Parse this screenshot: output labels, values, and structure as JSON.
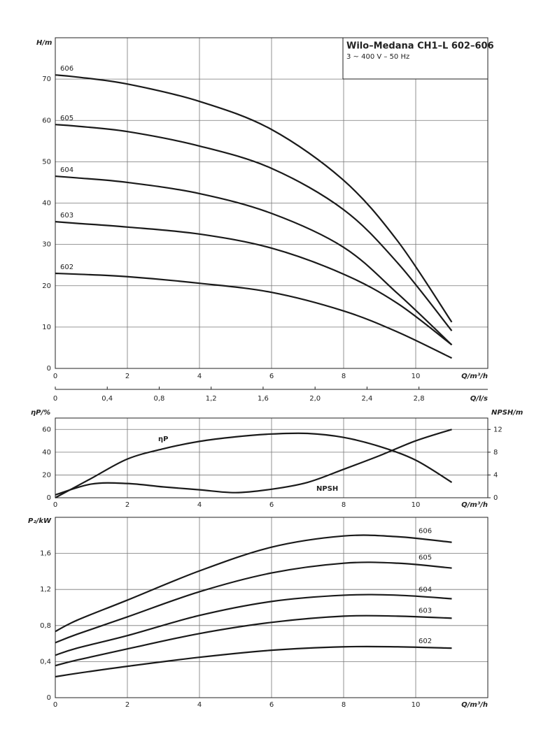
{
  "chart_data": [
    {
      "type": "line",
      "title": "Wilo–Medana CH1–L 602–606",
      "subtitle": "3 ~ 400 V – 50 Hz",
      "y_label": "H/m",
      "x_label": "Q/m³/h",
      "x2_label": "Q/l/s",
      "xlim": [
        0,
        12
      ],
      "xticks": [
        0,
        2,
        4,
        6,
        8,
        10
      ],
      "x2lim": [
        0,
        3.33
      ],
      "x2ticks": [
        0,
        {
          "value": 0.4,
          "label": "0,4"
        },
        {
          "value": 0.8,
          "label": "0,8"
        },
        {
          "value": 1.2,
          "label": "1,2"
        },
        {
          "value": 1.6,
          "label": "1,6"
        },
        {
          "value": 2.0,
          "label": "2,0"
        },
        {
          "value": 2.4,
          "label": "2,4"
        },
        {
          "value": 2.8,
          "label": "2,8"
        }
      ],
      "ylim": [
        0,
        80
      ],
      "yticks": [
        0,
        10,
        20,
        30,
        40,
        50,
        60,
        70
      ],
      "grid": true,
      "x": [
        0,
        0.6,
        2,
        4,
        6,
        8,
        9.5,
        11
      ],
      "series": [
        {
          "name": "606",
          "color": "#1a1a1a",
          "values": [
            71,
            70.5,
            68.8,
            64.6,
            57.8,
            45.5,
            30.8,
            11.2
          ]
        },
        {
          "name": "605",
          "color": "#1a1a1a",
          "values": [
            59,
            58.6,
            57.3,
            53.8,
            48.4,
            38.4,
            25.5,
            9.1
          ]
        },
        {
          "name": "604",
          "color": "#1a1a1a",
          "values": [
            46.5,
            46.1,
            45,
            42.3,
            37.5,
            29.3,
            18.1,
            5.7
          ]
        },
        {
          "name": "603",
          "color": "#1a1a1a",
          "values": [
            35.5,
            35.1,
            34.2,
            32.5,
            29.1,
            22.8,
            15.7,
            5.7
          ]
        },
        {
          "name": "602",
          "color": "#1a1a1a",
          "values": [
            23,
            22.8,
            22.2,
            20.6,
            18.4,
            13.9,
            8.8,
            2.5
          ]
        }
      ]
    },
    {
      "type": "line",
      "y_label": "ηP/%",
      "y2_label": "NPSH/m",
      "x_label": "Q/m³/h",
      "xlim": [
        0,
        12
      ],
      "xticks": [
        0,
        2,
        4,
        6,
        8,
        10
      ],
      "ylim": [
        0,
        70
      ],
      "yticks": [
        0,
        20,
        40,
        60
      ],
      "y2lim": [
        0,
        14
      ],
      "y2ticks": [
        0,
        4,
        8,
        12
      ],
      "grid": true,
      "x": [
        0,
        1,
        2,
        3,
        4,
        5,
        6,
        7,
        8,
        9,
        10,
        11
      ],
      "series": [
        {
          "name": "ηP",
          "color": "#1a1a1a",
          "values": [
            0,
            17,
            34,
            43,
            49.5,
            53.5,
            56,
            56.5,
            53,
            45,
            33,
            13.5
          ]
        },
        {
          "name": "NPSH",
          "color": "#1a1a1a",
          "axis": "y2",
          "values": [
            0.5,
            2.4,
            2.5,
            1.9,
            1.4,
            0.9,
            1.5,
            2.7,
            5,
            7.4,
            10,
            12
          ]
        }
      ]
    },
    {
      "type": "line",
      "y_label": "P₂/kW",
      "x_label": "Q/m³/h",
      "xlim": [
        0,
        12
      ],
      "xticks": [
        0,
        2,
        4,
        6,
        8,
        10
      ],
      "ylim": [
        0,
        2
      ],
      "yticks": [
        0,
        {
          "value": 0.4,
          "label": "0,4"
        },
        {
          "value": 0.8,
          "label": "0,8"
        },
        {
          "value": 1.2,
          "label": "1,2"
        },
        {
          "value": 1.6,
          "label": "1,6"
        }
      ],
      "grid": true,
      "x": [
        0,
        0.6,
        2,
        4,
        6,
        8,
        9.5,
        11
      ],
      "series": [
        {
          "name": "606",
          "color": "#1a1a1a",
          "values": [
            0.734,
            0.858,
            1.082,
            1.406,
            1.669,
            1.793,
            1.785,
            1.723
          ]
        },
        {
          "name": "605",
          "color": "#1a1a1a",
          "values": [
            0.61,
            0.703,
            0.896,
            1.175,
            1.383,
            1.491,
            1.491,
            1.437
          ]
        },
        {
          "name": "604",
          "color": "#1a1a1a",
          "values": [
            0.471,
            0.549,
            0.688,
            0.912,
            1.067,
            1.136,
            1.136,
            1.097
          ]
        },
        {
          "name": "603",
          "color": "#1a1a1a",
          "values": [
            0.355,
            0.417,
            0.541,
            0.711,
            0.835,
            0.904,
            0.904,
            0.881
          ]
        },
        {
          "name": "602",
          "color": "#1a1a1a",
          "values": [
            0.232,
            0.27,
            0.348,
            0.448,
            0.526,
            0.564,
            0.564,
            0.549
          ]
        }
      ]
    }
  ]
}
